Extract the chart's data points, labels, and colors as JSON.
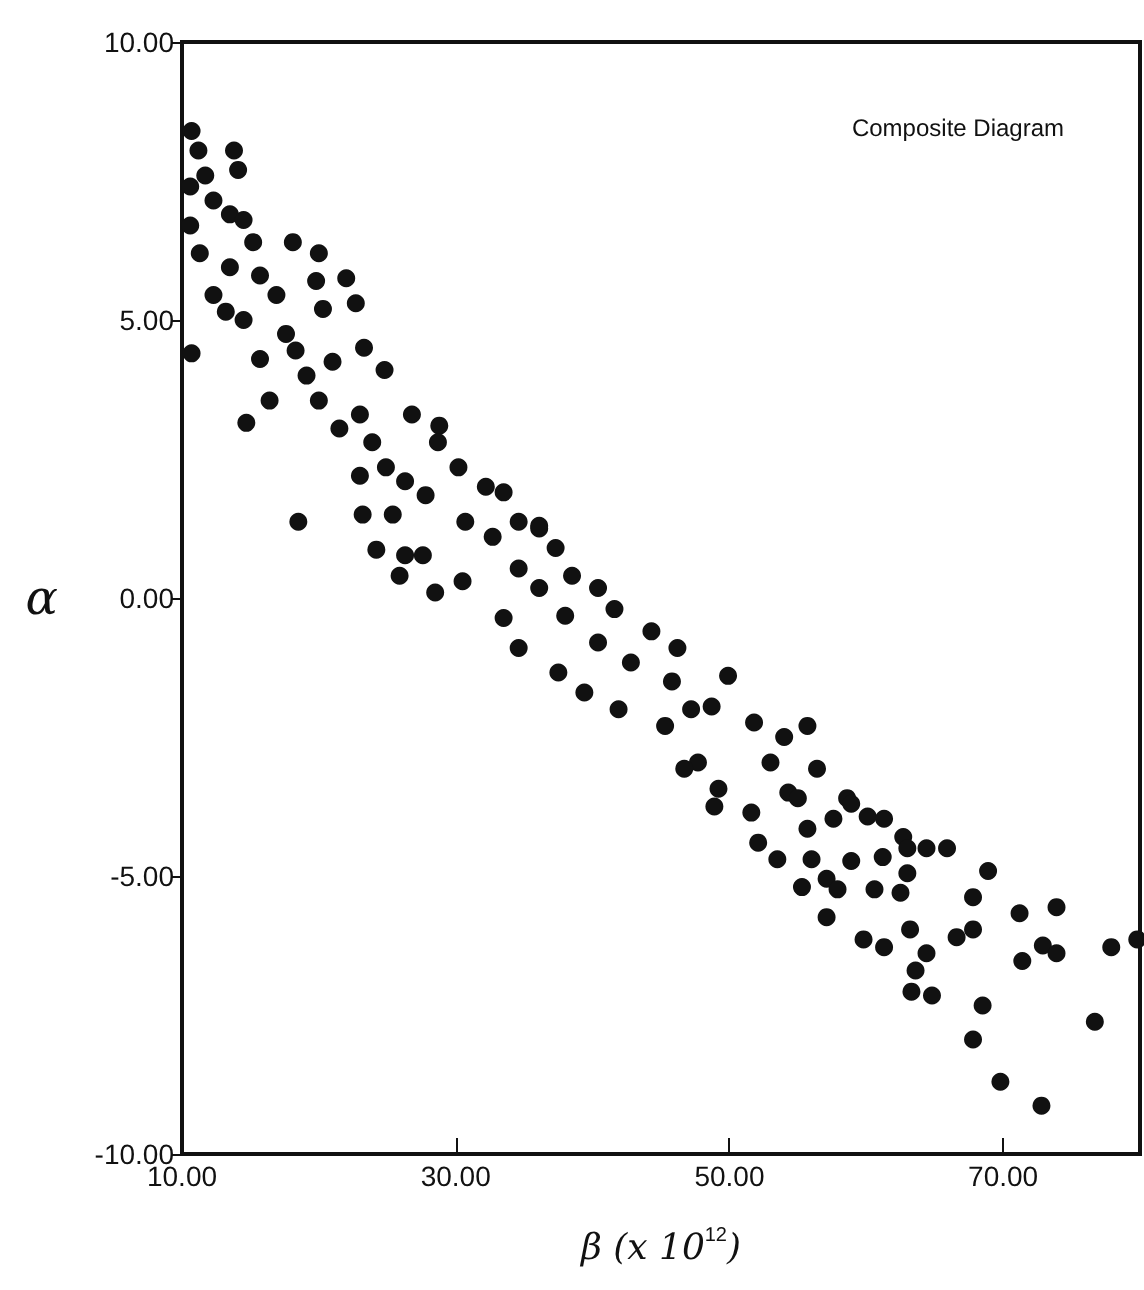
{
  "chart_data": {
    "type": "scatter",
    "xlabel": "β (x 10$^{12}$)",
    "ylabel": "α",
    "annotations": [
      "Composite Diagram"
    ],
    "xlim": [
      10,
      80
    ],
    "xticks": [
      {
        "value": 10,
        "label": "10.00"
      },
      {
        "value": 30,
        "label": "30.00"
      },
      {
        "value": 50,
        "label": "50.00"
      },
      {
        "value": 70,
        "label": "70.00"
      }
    ],
    "ylim": [
      -10,
      10
    ],
    "yticks": [
      {
        "value": -10,
        "label": "-10.00"
      },
      {
        "value": -5,
        "label": "-5.00"
      },
      {
        "value": 0,
        "label": "0.00"
      },
      {
        "value": 5,
        "label": "5.00"
      },
      {
        "value": 10,
        "label": "10.00"
      }
    ],
    "grid": false,
    "marker": "circle",
    "series": [
      {
        "color": "#111111",
        "x": [
          10.7,
          11.2,
          10.6,
          11.7,
          13.8,
          14.1,
          10.6,
          11.3,
          12.3,
          13.5,
          14.5,
          15.2,
          13.5,
          12.3,
          13.2,
          10.7,
          14.5,
          15.7,
          16.9,
          18.1,
          20,
          19.8,
          22,
          22.7,
          20.3,
          17.6,
          15.7,
          16.4,
          18.3,
          19.1,
          14.7,
          21,
          23.3,
          24.8,
          20,
          21.5,
          18.5,
          23,
          23.9,
          26.8,
          28.8,
          28.7,
          24.9,
          23,
          26.3,
          27.8,
          30.2,
          32.2,
          33.5,
          23.2,
          25.4,
          24.2,
          26.3,
          27.6,
          25.9,
          28.5,
          30.5,
          30.7,
          32.7,
          34.6,
          36.1,
          37.3,
          34.6,
          38.5,
          40.4,
          36.1,
          41.6,
          33.5,
          34.6,
          37.5,
          39.4,
          44.3,
          46.2,
          49.9,
          48.7,
          41.9,
          45.3,
          51.8,
          54,
          55.7,
          56.4,
          53,
          47.7,
          49.2,
          54.3,
          58.6,
          42.8,
          38,
          36.1,
          40.4,
          45.8,
          47.2,
          46.7,
          48.9,
          52.1,
          53.5,
          51.6,
          55,
          55.7,
          56,
          55.3,
          57.1,
          57.1,
          57.9,
          57.6,
          58.9,
          58.9,
          60.1,
          61.3,
          60.6,
          59.8,
          61.3,
          61.2,
          62.5,
          63,
          62.7,
          63,
          64.4,
          65.9,
          63.2,
          64.4,
          63.6,
          63.3,
          64.8,
          66.6,
          67.8,
          67.8,
          68.9,
          68.5,
          67.8,
          69.8,
          71.2,
          71.4,
          73.9,
          72.9,
          73.9,
          72.8,
          76.7,
          77.9,
          79.8
        ],
        "values": [
          8.4,
          8.05,
          7.4,
          7.6,
          8.05,
          7.7,
          6.7,
          6.2,
          7.15,
          6.9,
          6.8,
          6.4,
          5.95,
          5.45,
          5.15,
          4.4,
          5.0,
          5.8,
          5.45,
          6.4,
          6.2,
          5.7,
          5.75,
          5.3,
          5.2,
          4.75,
          4.3,
          3.55,
          4.45,
          4.0,
          3.15,
          4.25,
          4.5,
          4.1,
          3.55,
          3.05,
          1.37,
          3.3,
          2.8,
          3.3,
          3.1,
          2.8,
          2.35,
          2.2,
          2.1,
          1.85,
          2.35,
          2.0,
          1.9,
          1.5,
          1.5,
          0.87,
          0.77,
          0.77,
          0.4,
          0.1,
          0.3,
          1.37,
          1.1,
          1.37,
          1.25,
          0.9,
          0.53,
          0.4,
          0.18,
          1.3,
          -0.2,
          -0.36,
          -0.9,
          -1.34,
          -1.7,
          -0.6,
          -0.9,
          -1.4,
          -1.95,
          -2.0,
          -2.3,
          -2.24,
          -2.5,
          -2.3,
          -3.07,
          -2.96,
          -2.96,
          -3.43,
          -3.5,
          -3.6,
          -1.16,
          -0.32,
          0.18,
          -0.8,
          -1.5,
          -2.0,
          -3.07,
          -3.75,
          -4.4,
          -4.7,
          -3.86,
          -3.6,
          -4.15,
          -4.7,
          -5.2,
          -5.05,
          -5.74,
          -5.24,
          -3.97,
          -3.7,
          -4.73,
          -3.93,
          -3.97,
          -5.24,
          -6.14,
          -6.28,
          -4.66,
          -5.3,
          -4.95,
          -4.3,
          -4.5,
          -4.5,
          -4.5,
          -5.96,
          -6.39,
          -6.7,
          -7.08,
          -7.15,
          -6.1,
          -5.96,
          -5.38,
          -4.91,
          -7.33,
          -7.94,
          -8.7,
          -5.67,
          -6.53,
          -5.56,
          -6.25,
          -6.39,
          -9.13,
          -7.62,
          -6.28,
          -6.14
        ]
      }
    ]
  }
}
